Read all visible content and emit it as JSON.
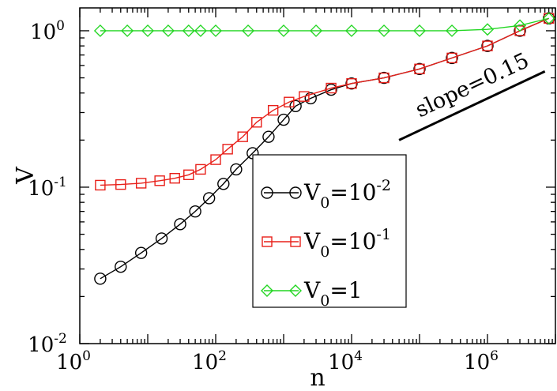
{
  "chart_data": {
    "type": "line",
    "xlabel": "n",
    "ylabel": "V",
    "x_scale": "log",
    "y_scale": "log",
    "xlim": [
      1,
      10000000
    ],
    "ylim": [
      0.01,
      1.4
    ],
    "x_ticks": [
      {
        "base": "10",
        "exp": "0",
        "value": 1
      },
      {
        "base": "10",
        "exp": "2",
        "value": 100
      },
      {
        "base": "10",
        "exp": "4",
        "value": 10000
      },
      {
        "base": "10",
        "exp": "6",
        "value": 1000000
      }
    ],
    "y_ticks": [
      {
        "base": "10",
        "exp": "-2",
        "value": 0.01
      },
      {
        "base": "10",
        "exp": "-1",
        "value": 0.1
      },
      {
        "base": "10",
        "exp": "0",
        "value": 1
      }
    ],
    "grid": false,
    "legend_position": "center-right",
    "series": [
      {
        "name_base": "V",
        "name_sub": "0",
        "name_eq": "=10",
        "name_sup": "-2",
        "color": "#000000",
        "marker": "circle",
        "points": [
          [
            2,
            0.026
          ],
          [
            4,
            0.031
          ],
          [
            8,
            0.038
          ],
          [
            16,
            0.047
          ],
          [
            30,
            0.058
          ],
          [
            50,
            0.07
          ],
          [
            80,
            0.085
          ],
          [
            130,
            0.105
          ],
          [
            200,
            0.13
          ],
          [
            350,
            0.165
          ],
          [
            600,
            0.21
          ],
          [
            1000,
            0.27
          ],
          [
            1500,
            0.33
          ],
          [
            2500,
            0.37
          ],
          [
            5000,
            0.42
          ],
          [
            10000,
            0.46
          ],
          [
            30000,
            0.5
          ],
          [
            100000,
            0.57
          ],
          [
            300000,
            0.67
          ],
          [
            1000000,
            0.8
          ],
          [
            3000000,
            1.0
          ],
          [
            8000000,
            1.2
          ]
        ]
      },
      {
        "name_base": "V",
        "name_sub": "0",
        "name_eq": "=10",
        "name_sup": "-1",
        "color": "#e8201a",
        "marker": "square",
        "points": [
          [
            2,
            0.103
          ],
          [
            4,
            0.104
          ],
          [
            8,
            0.106
          ],
          [
            15,
            0.11
          ],
          [
            25,
            0.114
          ],
          [
            40,
            0.12
          ],
          [
            60,
            0.13
          ],
          [
            100,
            0.15
          ],
          [
            150,
            0.175
          ],
          [
            250,
            0.21
          ],
          [
            400,
            0.26
          ],
          [
            700,
            0.31
          ],
          [
            1200,
            0.35
          ],
          [
            2000,
            0.38
          ],
          [
            5000,
            0.43
          ],
          [
            10000,
            0.46
          ],
          [
            30000,
            0.5
          ],
          [
            100000,
            0.57
          ],
          [
            300000,
            0.67
          ],
          [
            1000000,
            0.8
          ],
          [
            3000000,
            1.0
          ],
          [
            8000000,
            1.2
          ]
        ]
      },
      {
        "name_base": "V",
        "name_sub": "0",
        "name_eq": "=1",
        "name_sup": "",
        "color": "#22d622",
        "marker": "diamond",
        "points": [
          [
            2,
            1.0
          ],
          [
            5,
            1.0
          ],
          [
            10,
            1.0
          ],
          [
            20,
            1.0
          ],
          [
            40,
            1.0
          ],
          [
            60,
            1.0
          ],
          [
            100,
            1.0
          ],
          [
            300,
            1.0
          ],
          [
            1000,
            1.0
          ],
          [
            3000,
            1.0
          ],
          [
            10000,
            1.0
          ],
          [
            30000,
            1.0
          ],
          [
            100000,
            1.0
          ],
          [
            300000,
            1.0
          ],
          [
            1000000,
            1.02
          ],
          [
            3000000,
            1.08
          ],
          [
            8000000,
            1.2
          ]
        ]
      }
    ],
    "annotation": {
      "text": "slope=0.15",
      "slope": 0.15,
      "line_start": [
        50000,
        0.2
      ],
      "line_end": [
        7000000,
        0.55
      ]
    }
  }
}
